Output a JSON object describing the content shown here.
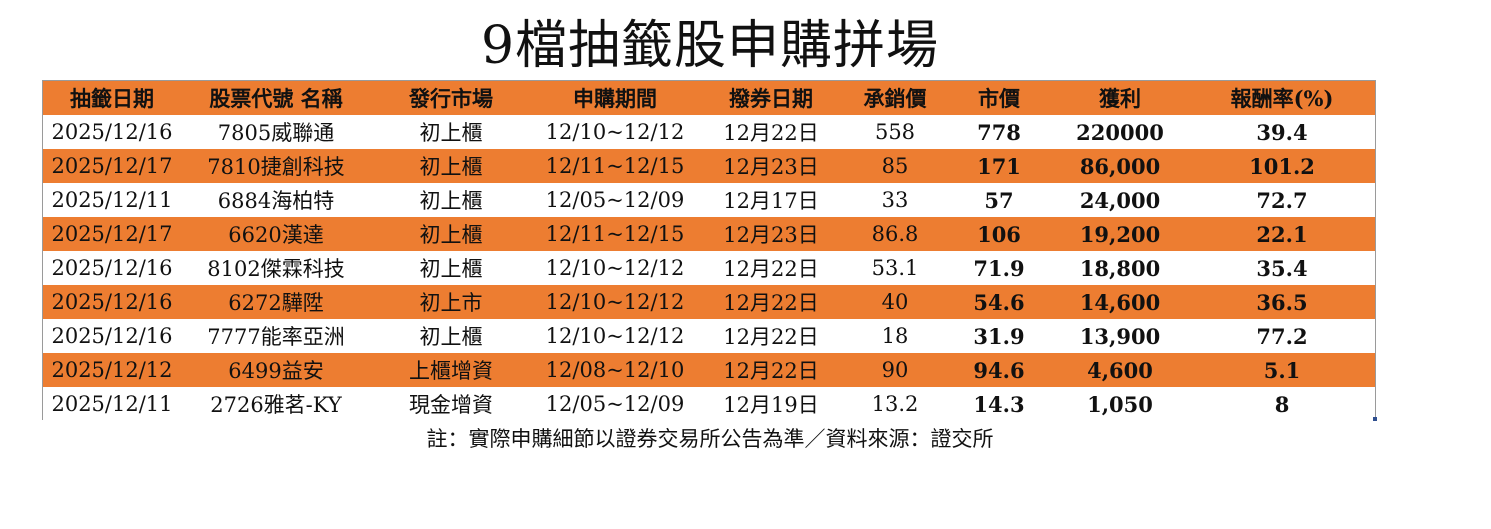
{
  "title": "9檔抽籤股申購拼場",
  "headers": [
    "抽籤日期",
    "股票代號 名稱",
    "發行市場",
    "申購期間",
    "撥券日期",
    "承銷價",
    "市價",
    "獲利",
    "報酬率(%)"
  ],
  "rows": [
    [
      "2025/12/16",
      "7805威聯通",
      "初上櫃",
      "12/10~12/12",
      "12月22日",
      "558",
      "778",
      "220000",
      "39.4"
    ],
    [
      "2025/12/17",
      "7810捷創科技",
      "初上櫃",
      "12/11~12/15",
      "12月23日",
      "85",
      "171",
      "86,000",
      "101.2"
    ],
    [
      "2025/12/11",
      "6884海柏特",
      "初上櫃",
      "12/05~12/09",
      "12月17日",
      "33",
      "57",
      "24,000",
      "72.7"
    ],
    [
      "2025/12/17",
      "6620漢達",
      "初上櫃",
      "12/11~12/15",
      "12月23日",
      "86.8",
      "106",
      "19,200",
      "22.1"
    ],
    [
      "2025/12/16",
      "8102傑霖科技",
      "初上櫃",
      "12/10~12/12",
      "12月22日",
      "53.1",
      "71.9",
      "18,800",
      "35.4"
    ],
    [
      "2025/12/16",
      "6272驊陞",
      "初上市",
      "12/10~12/12",
      "12月22日",
      "40",
      "54.6",
      "14,600",
      "36.5"
    ],
    [
      "2025/12/16",
      "7777能率亞洲",
      "初上櫃",
      "12/10~12/12",
      "12月22日",
      "18",
      "31.9",
      "13,900",
      "77.2"
    ],
    [
      "2025/12/12",
      "6499益安",
      "上櫃增資",
      "12/08~12/10",
      "12月22日",
      "90",
      "94.6",
      "4,600",
      "5.1"
    ],
    [
      "2025/12/11",
      "2726雅茗-KY",
      "現金增資",
      "12/05~12/09",
      "12月19日",
      "13.2",
      "14.3",
      "1,050",
      "8"
    ]
  ],
  "note": "註：實際申購細節以證券交易所公告為準／資料來源：證交所",
  "colors": {
    "header_band": "#ed7d31",
    "alt_row": "#ed7d31",
    "base_row": "#ffffff"
  }
}
